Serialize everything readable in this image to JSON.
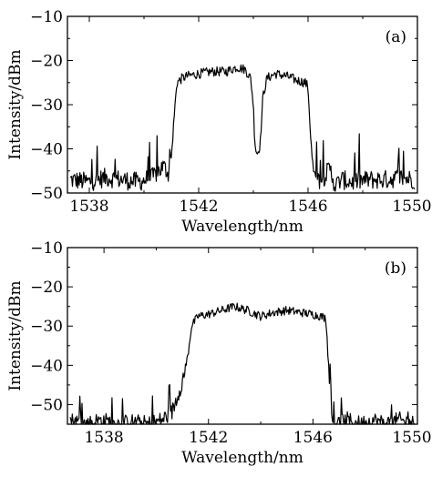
{
  "chart_data": [
    {
      "type": "line",
      "panel_label": "(a)",
      "xlabel": "Wavelength/nm",
      "ylabel": "Intensity/dBm",
      "xlim": [
        1537.2,
        1550
      ],
      "ylim": [
        -50,
        -10
      ],
      "xticks": [
        1538,
        1542,
        1546,
        1550
      ],
      "yticks": [
        -10,
        -20,
        -30,
        -40,
        -50
      ],
      "x_tick_labels": [
        "1538",
        "1542",
        "1546",
        "1550"
      ],
      "y_tick_labels": [
        "−10",
        "−20",
        "−30",
        "−40",
        "−50"
      ],
      "grid": false,
      "series": [
        {
          "color": "#000000",
          "x": [
            1537.3,
            1538.0,
            1538.6,
            1539.2,
            1539.8,
            1540.3,
            1540.7,
            1540.9,
            1541.0,
            1541.1,
            1541.2,
            1541.4,
            1541.6,
            1542.0,
            1542.5,
            1543.0,
            1543.4,
            1543.7,
            1543.9,
            1544.0,
            1544.05,
            1544.1,
            1544.15,
            1544.25,
            1544.35,
            1544.5,
            1544.8,
            1545.2,
            1545.6,
            1545.9,
            1546.0,
            1546.1,
            1546.2,
            1546.3,
            1546.5,
            1546.8,
            1547.0,
            1547.2,
            1547.6,
            1548.2,
            1548.8,
            1549.4,
            1549.9
          ],
          "y": [
            -47,
            -47.5,
            -46.5,
            -47,
            -47.5,
            -46.5,
            -44,
            -45.5,
            -42,
            -33,
            -25,
            -24,
            -23.5,
            -23,
            -22.5,
            -22.5,
            -21.5,
            -22,
            -24,
            -30,
            -38,
            -40.5,
            -41,
            -39,
            -28,
            -24,
            -23,
            -23.5,
            -24.5,
            -25,
            -26,
            -38,
            -46,
            -47,
            -47,
            -44.5,
            -48.5,
            -47,
            -47.5,
            -47,
            -47,
            -46.5,
            -47
          ]
        }
      ]
    },
    {
      "type": "line",
      "panel_label": "(b)",
      "xlabel": "Wavelength/nm",
      "ylabel": "Intensity/dBm",
      "xlim": [
        1536.6,
        1550
      ],
      "ylim": [
        -55,
        -10
      ],
      "xticks": [
        1538,
        1542,
        1546,
        1550
      ],
      "yticks": [
        -10,
        -20,
        -30,
        -40,
        -50
      ],
      "x_tick_labels": [
        "1538",
        "1542",
        "1546",
        "1550"
      ],
      "y_tick_labels": [
        "−10",
        "−20",
        "−30",
        "−40",
        "−50"
      ],
      "grid": false,
      "series": [
        {
          "color": "#000000",
          "x": [
            1536.7,
            1537.3,
            1537.9,
            1538.5,
            1539.1,
            1539.7,
            1540.2,
            1540.6,
            1540.8,
            1541.0,
            1541.2,
            1541.35,
            1541.6,
            1542.0,
            1542.5,
            1543.0,
            1543.5,
            1544.0,
            1544.5,
            1545.0,
            1545.5,
            1546.0,
            1546.3,
            1546.5,
            1546.6,
            1546.7,
            1546.9,
            1547.3,
            1547.8,
            1548.3,
            1548.8,
            1549.3,
            1549.9
          ],
          "y": [
            -54,
            -55,
            -54,
            -55,
            -54.5,
            -55,
            -54,
            -52,
            -48,
            -44,
            -38,
            -30,
            -27.5,
            -27,
            -26,
            -25,
            -26,
            -27.5,
            -26.5,
            -26,
            -26.5,
            -27,
            -27.5,
            -28,
            -40,
            -54,
            -55,
            -54,
            -55,
            -54,
            -55,
            -54,
            -55
          ]
        }
      ]
    }
  ]
}
